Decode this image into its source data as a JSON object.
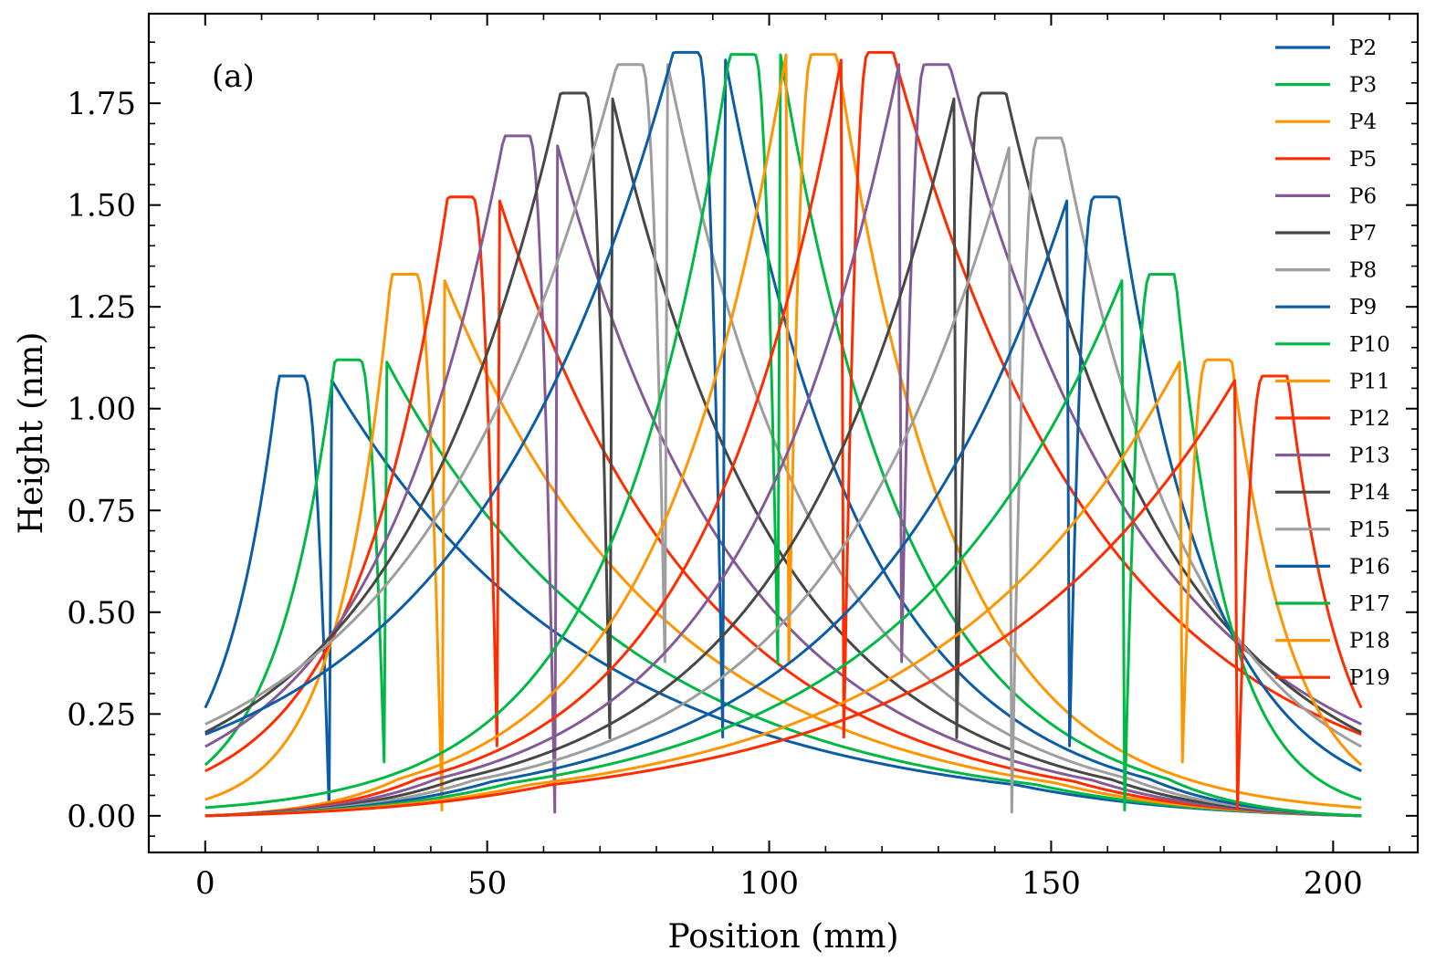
{
  "chart_data": {
    "type": "line",
    "panel_label": "(a)",
    "xlabel": "Position (mm)",
    "ylabel": "Height (nm)",
    "xlim": [
      -10,
      215
    ],
    "ylim": [
      -0.09,
      1.97
    ],
    "x_ticks": [
      0,
      50,
      100,
      150,
      200
    ],
    "x_tick_labels": [
      "0",
      "50",
      "100",
      "150",
      "200"
    ],
    "y_ticks": [
      0.0,
      0.25,
      0.5,
      0.75,
      1.0,
      1.25,
      1.5,
      1.75
    ],
    "y_tick_labels": [
      "0.00",
      "0.25",
      "0.50",
      "0.75",
      "1.00",
      "1.25",
      "1.50",
      "1.75"
    ],
    "x_domain": [
      0,
      205
    ],
    "legend_position": "top-right",
    "series": [
      {
        "name": "P2",
        "color": "#0C5DA5",
        "peak_x": 17.5,
        "peak_y": 1.08,
        "start_y": 0.265,
        "end_y": 0.0
      },
      {
        "name": "P3",
        "color": "#00B945",
        "peak_x": 27.5,
        "peak_y": 1.12,
        "start_y": 0.125,
        "end_y": 0.0
      },
      {
        "name": "P4",
        "color": "#FF9500",
        "peak_x": 37.5,
        "peak_y": 1.33,
        "start_y": 0.04,
        "end_y": 0.0
      },
      {
        "name": "P5",
        "color": "#FF2C00",
        "peak_x": 47.5,
        "peak_y": 1.52,
        "start_y": 0.11,
        "end_y": 0.0
      },
      {
        "name": "P6",
        "color": "#845B97",
        "peak_x": 57.5,
        "peak_y": 1.67,
        "start_y": 0.17,
        "end_y": 0.0
      },
      {
        "name": "P7",
        "color": "#474747",
        "peak_x": 67.5,
        "peak_y": 1.775,
        "start_y": 0.205,
        "end_y": 0.0
      },
      {
        "name": "P8",
        "color": "#9E9E9E",
        "peak_x": 77.5,
        "peak_y": 1.845,
        "start_y": 0.225,
        "end_y": 0.0
      },
      {
        "name": "P9",
        "color": "#0C5DA5",
        "peak_x": 87.5,
        "peak_y": 1.875,
        "start_y": 0.2,
        "end_y": 0.0
      },
      {
        "name": "P10",
        "color": "#00B945",
        "peak_x": 97.5,
        "peak_y": 1.87,
        "start_y": 0.02,
        "end_y": 0.0
      },
      {
        "name": "P11",
        "color": "#FF9500",
        "peak_x": 107.5,
        "peak_y": 1.87,
        "start_y": 0.0,
        "end_y": 0.02
      },
      {
        "name": "P12",
        "color": "#FF2C00",
        "peak_x": 117.5,
        "peak_y": 1.875,
        "start_y": 0.0,
        "end_y": 0.2
      },
      {
        "name": "P13",
        "color": "#845B97",
        "peak_x": 127.5,
        "peak_y": 1.845,
        "start_y": 0.0,
        "end_y": 0.225
      },
      {
        "name": "P14",
        "color": "#474747",
        "peak_x": 137.5,
        "peak_y": 1.775,
        "start_y": 0.0,
        "end_y": 0.205
      },
      {
        "name": "P15",
        "color": "#9E9E9E",
        "peak_x": 147.5,
        "peak_y": 1.665,
        "start_y": 0.0,
        "end_y": 0.17
      },
      {
        "name": "P16",
        "color": "#0C5DA5",
        "peak_x": 157.5,
        "peak_y": 1.52,
        "start_y": 0.0,
        "end_y": 0.11
      },
      {
        "name": "P17",
        "color": "#00B945",
        "peak_x": 167.5,
        "peak_y": 1.33,
        "start_y": 0.0,
        "end_y": 0.04
      },
      {
        "name": "P18",
        "color": "#FF9500",
        "peak_x": 177.5,
        "peak_y": 1.12,
        "start_y": 0.0,
        "end_y": 0.125
      },
      {
        "name": "P19",
        "color": "#FF2C00",
        "peak_x": 187.5,
        "peak_y": 1.08,
        "start_y": 0.0,
        "end_y": 0.265
      }
    ]
  }
}
